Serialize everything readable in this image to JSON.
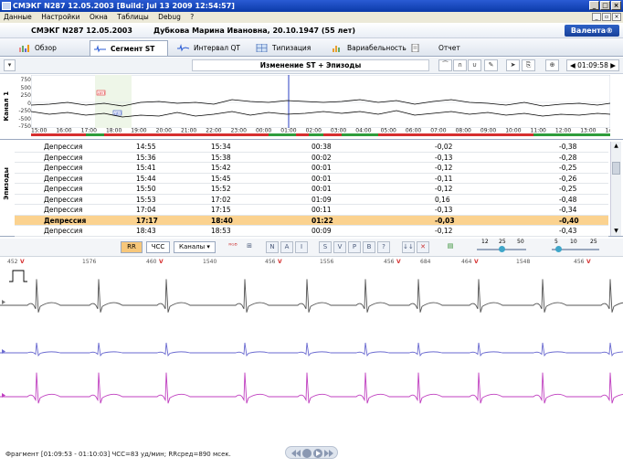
{
  "window": {
    "title": "СМЭКГ  N287  12.05.2003 [Build: Jul 13 2009 12:54:57]"
  },
  "menu": [
    "Данные",
    "Настройки",
    "Окна",
    "Таблицы",
    "Debug",
    "?"
  ],
  "header": {
    "record": "СМЭКГ  N287  12.05.2003",
    "patient": "Дубкова Марина Ивановна, 20.10.1947 (55 лет)",
    "logo": "Валента®"
  },
  "tabs": [
    {
      "label": "Обзор"
    },
    {
      "label": "Сегмент ST",
      "active": true
    },
    {
      "label": "Интервал QT"
    },
    {
      "label": "Типизация"
    },
    {
      "label": "Вариабельность"
    },
    {
      "label": "Отчет"
    }
  ],
  "strip": {
    "title": "Изменение ST + Эпизоды",
    "time": "01:09:58"
  },
  "trend": {
    "channel_label": "Канал 1",
    "y_ticks": [
      "750",
      "500",
      "250",
      "0",
      "-250",
      "-500",
      "-750"
    ],
    "time_ticks": [
      "15:00",
      "16:00",
      "17:00",
      "18:00",
      "19:00",
      "20:00",
      "21:00",
      "22:00",
      "23:00",
      "00:00",
      "01:00",
      "02:00",
      "03:00",
      "04:00",
      "05:00",
      "06:00",
      "07:00",
      "08:00",
      "09:00",
      "10:00",
      "11:00",
      "12:00",
      "13:00",
      "14:00"
    ],
    "marker_labels": [
      "ДЕП",
      "ДЕП"
    ]
  },
  "episodes": {
    "label": "Эпизоды",
    "rows": [
      [
        "Депрессия",
        "14:55",
        "15:34",
        "00:38",
        "-0,02",
        "-0,38"
      ],
      [
        "Депрессия",
        "15:36",
        "15:38",
        "00:02",
        "-0,13",
        "-0,28"
      ],
      [
        "Депрессия",
        "15:41",
        "15:42",
        "00:01",
        "-0,12",
        "-0,25"
      ],
      [
        "Депрессия",
        "15:44",
        "15:45",
        "00:01",
        "-0,11",
        "-0,26"
      ],
      [
        "Депрессия",
        "15:50",
        "15:52",
        "00:01",
        "-0,12",
        "-0,25"
      ],
      [
        "Депрессия",
        "15:53",
        "17:02",
        "01:09",
        "0,16",
        "-0,48"
      ],
      [
        "Депрессия",
        "17:04",
        "17:15",
        "00:11",
        "-0,13",
        "-0,34"
      ],
      [
        "Депрессия",
        "17:17",
        "18:40",
        "01:22",
        "-0,03",
        "-0,40"
      ],
      [
        "Депрессия",
        "18:43",
        "18:53",
        "00:09",
        "-0,12",
        "-0,43"
      ]
    ],
    "selected_index": 7
  },
  "ecg_toolbar": {
    "rr": "RR",
    "hr": "ЧСС",
    "channels": "Каналы",
    "letters": [
      "N",
      "A",
      "I",
      "S",
      "V",
      "P",
      "B",
      "?"
    ],
    "scale1": [
      "12",
      "25",
      "50"
    ],
    "scale2": [
      "5",
      "10",
      "25"
    ]
  },
  "ecg": {
    "rr_labels": [
      {
        "t": "452",
        "v": "V"
      },
      {
        "t": "1576"
      },
      {
        "t": "460",
        "v": "V"
      },
      {
        "t": "1540"
      },
      {
        "t": "456",
        "v": "V"
      },
      {
        "t": "1556"
      },
      {
        "t": "456",
        "v": "V"
      },
      {
        "t": "684"
      },
      {
        "t": "464",
        "v": "V"
      },
      {
        "t": "1548"
      },
      {
        "t": "456",
        "v": "V"
      }
    ],
    "colors": {
      "ch1": "#555555",
      "ch2": "#6a6ad0",
      "ch3": "#c040c0"
    }
  },
  "status": {
    "text": "Фрагмент [01:09:53 - 01:10:03]  ЧСС=83 уд/мин;  RRсред=890 мсек."
  }
}
